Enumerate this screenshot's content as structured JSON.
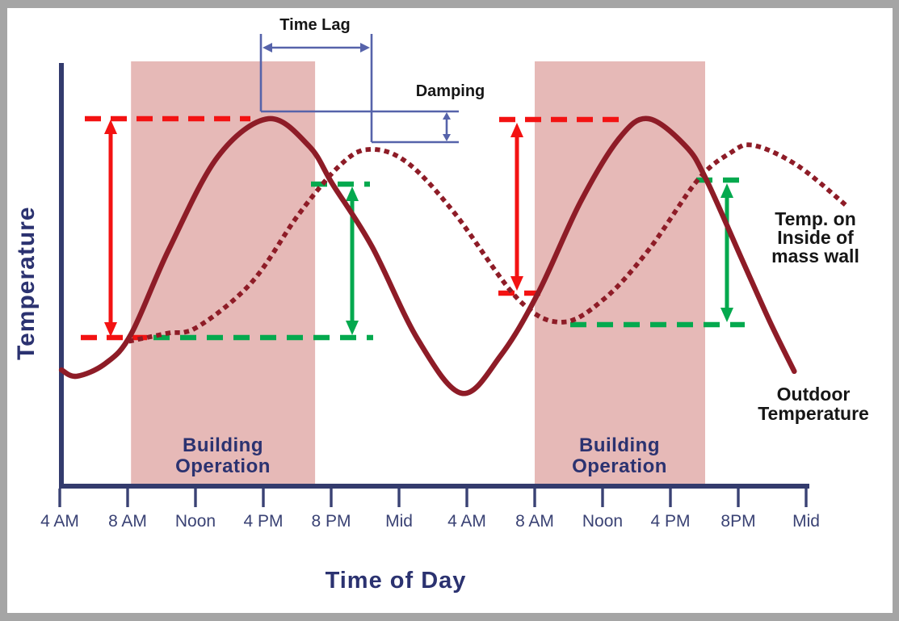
{
  "figure": {
    "ylabel": "Temperature",
    "xlabel": "Time of Day",
    "time_lag_label": "Time Lag",
    "damping_label": "Damping",
    "band_label_line1": "Building",
    "band_label_line2": "Operation",
    "inside_label_line1": "Temp. on",
    "inside_label_line2": "Inside of",
    "inside_label_line3": "mass wall",
    "outdoor_label_line1": "Outdoor",
    "outdoor_label_line2": "Temperature"
  },
  "axis": {
    "x_ticks": [
      "4 AM",
      "8 AM",
      "Noon",
      "4 PM",
      "8 PM",
      "Mid",
      "4 AM",
      "8 AM",
      "Noon",
      "4 PM",
      "8PM",
      "Mid"
    ]
  },
  "colors": {
    "frame_gray": "#a5a5a5",
    "axis_navy": "#333b6d",
    "text_navy": "#2b3270",
    "curve_maroon": "#8e1c27",
    "band_pink": "#e6b9b7",
    "annotation_red": "#f31212",
    "annotation_green": "#04a94e",
    "annotation_blue": "#5663aa",
    "label_black": "#161616"
  },
  "chart_data": {
    "type": "line",
    "title": "",
    "xlabel": "Time of Day",
    "ylabel": "Temperature",
    "x_unit": "hour of day over a 48-hour span (ticks every 4 hours)",
    "y_unit": "relative temperature level 0-100 (axis unlabeled)",
    "x_tick_hours": [
      4,
      8,
      12,
      16,
      20,
      24,
      28,
      32,
      36,
      40,
      44,
      48
    ],
    "x_tick_labels": [
      "4 AM",
      "8 AM",
      "Noon",
      "4 PM",
      "8 PM",
      "Mid",
      "4 AM",
      "8 AM",
      "Noon",
      "4 PM",
      "8PM",
      "Mid"
    ],
    "grid": false,
    "legend": "inline text labels next to curves",
    "series": [
      {
        "name": "Outdoor Temperature",
        "style": "solid",
        "color": "#8e1c27",
        "points": [
          [
            4.1,
            8.5
          ],
          [
            5.0,
            6.2
          ],
          [
            6.7,
            10.9
          ],
          [
            8.2,
            21.5
          ],
          [
            10.4,
            52.0
          ],
          [
            13.3,
            86.0
          ],
          [
            16.3,
            100.0
          ],
          [
            18.7,
            90.0
          ],
          [
            20.1,
            76.0
          ],
          [
            22.4,
            53.5
          ],
          [
            25.1,
            19.7
          ],
          [
            27.7,
            0.0
          ],
          [
            30.0,
            13.8
          ],
          [
            32.2,
            36.5
          ],
          [
            34.7,
            69.7
          ],
          [
            37.0,
            93.0
          ],
          [
            38.7,
            100.0
          ],
          [
            40.9,
            90.0
          ],
          [
            42.1,
            78.0
          ],
          [
            44.2,
            49.0
          ],
          [
            45.9,
            25.6
          ],
          [
            47.3,
            8.0
          ]
        ]
      },
      {
        "name": "Temp. on Inside of mass wall",
        "style": "dotted",
        "color": "#8e1c27",
        "points": [
          [
            8.2,
            19.1
          ],
          [
            10.3,
            21.8
          ],
          [
            12.1,
            24.1
          ],
          [
            15.3,
            40.3
          ],
          [
            18.1,
            65.3
          ],
          [
            20.5,
            82.9
          ],
          [
            22.2,
            88.8
          ],
          [
            24.4,
            84.4
          ],
          [
            27.2,
            66.2
          ],
          [
            31.0,
            34.4
          ],
          [
            33.6,
            25.9
          ],
          [
            36.1,
            34.4
          ],
          [
            38.7,
            52.1
          ],
          [
            41.6,
            77.6
          ],
          [
            43.5,
            87.4
          ],
          [
            44.9,
            90.3
          ],
          [
            47.5,
            82.9
          ],
          [
            50.4,
            68.2
          ]
        ]
      }
    ],
    "annotations": {
      "time_lag": {
        "label": "Time Lag",
        "from_hour": 16.0,
        "to_hour": 22.4,
        "meaning": "delay between outdoor peak and inside-wall peak"
      },
      "damping": {
        "label": "Damping",
        "outdoor_peak_level": 100,
        "inside_peak_level": 89,
        "meaning": "reduction of peak temperature through the mass wall"
      },
      "outdoor_swing_arrows_red": [
        {
          "at_hour": 7.0,
          "from_level": 20.3,
          "to_level": 100
        },
        {
          "at_hour": 31.0,
          "from_level": 36.5,
          "to_level": 100
        }
      ],
      "inside_swing_arrows_green": [
        {
          "at_hour": 21.2,
          "from_level": 20.3,
          "to_level": 76.2
        },
        {
          "at_hour": 43.3,
          "from_level": 25.0,
          "to_level": 77.6
        }
      ],
      "building_operation_bands": [
        {
          "label": "Building Operation",
          "from_hour": 8.2,
          "to_hour": 19.05
        },
        {
          "label": "Building Operation",
          "from_hour": 32.0,
          "to_hour": 42.05
        }
      ]
    }
  }
}
